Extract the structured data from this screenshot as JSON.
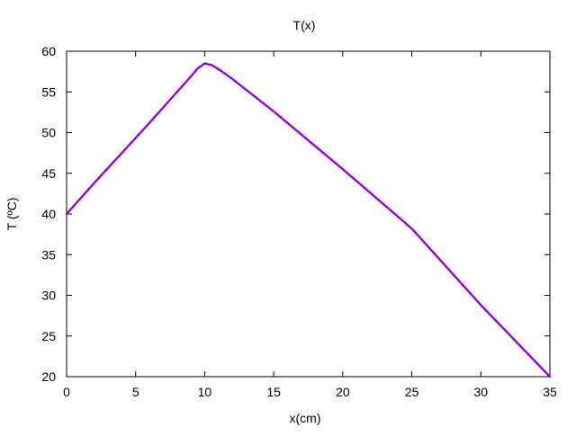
{
  "chart_data": {
    "type": "line",
    "title": "T(x)",
    "xlabel": "x(cm)",
    "ylabel": "T (ºC)",
    "xlim": [
      0,
      35
    ],
    "ylim": [
      20,
      60
    ],
    "x_ticks": [
      0,
      5,
      10,
      15,
      20,
      25,
      30,
      35
    ],
    "y_ticks": [
      20,
      25,
      30,
      35,
      40,
      45,
      50,
      55,
      60
    ],
    "grid": false,
    "legend": "none",
    "series": [
      {
        "color": "#9400d3",
        "x": [
          0,
          2,
          4,
          6,
          8,
          9,
          9.5,
          10,
          10.5,
          11,
          12,
          15,
          20,
          25,
          30,
          35
        ],
        "y": [
          40,
          43.8,
          47.5,
          51.2,
          55.0,
          56.9,
          57.9,
          58.5,
          58.3,
          57.8,
          56.6,
          52.6,
          45.5,
          38.2,
          28.8,
          20
        ]
      }
    ]
  }
}
